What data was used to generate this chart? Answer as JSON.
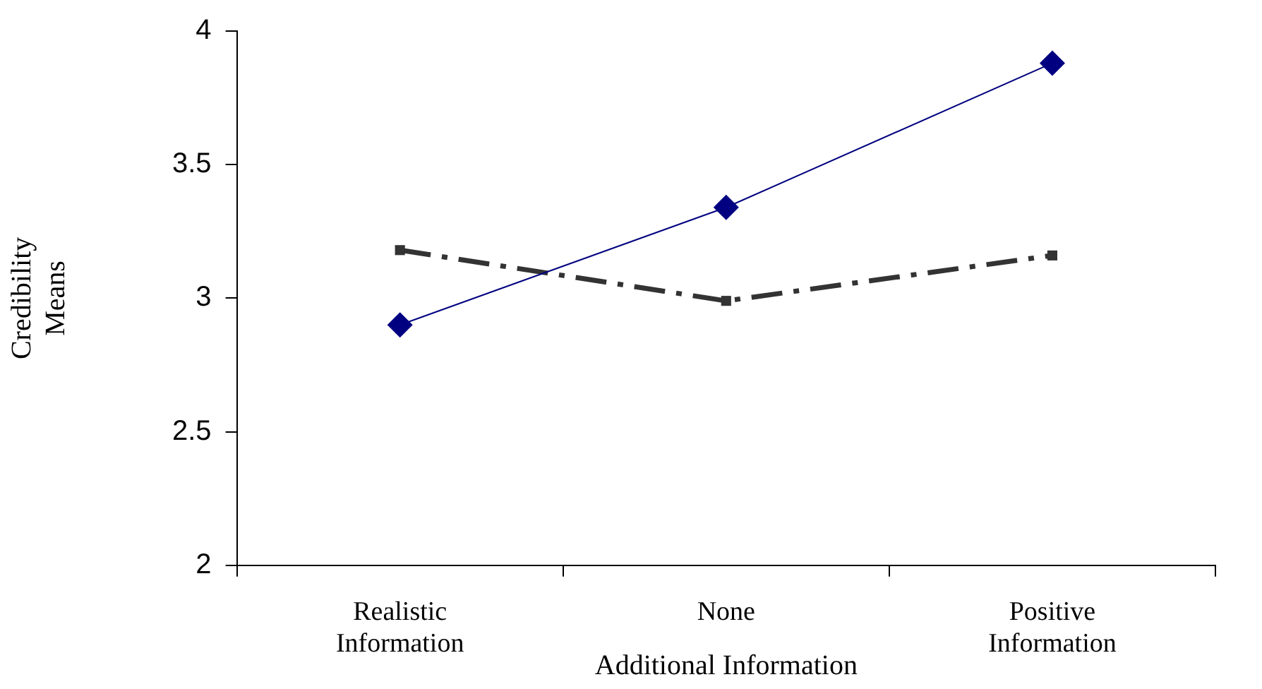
{
  "chart_data": {
    "type": "line",
    "ylabel": "Credibility Means",
    "xlabel": "Additional Information",
    "categories": [
      "Realistic Information",
      "None",
      "Positive Information"
    ],
    "ylim": [
      2,
      4
    ],
    "yticks": [
      2,
      2.5,
      3,
      3.5,
      4
    ],
    "grid": false,
    "legend": false,
    "series": [
      {
        "color": "#000080",
        "values": [
          2.9,
          3.34,
          3.88
        ],
        "marker": "diamond",
        "line_style": "solid"
      },
      {
        "color": "#333333",
        "values": [
          3.18,
          2.99,
          3.16
        ],
        "marker": "square",
        "line_style": "dashed"
      }
    ]
  }
}
